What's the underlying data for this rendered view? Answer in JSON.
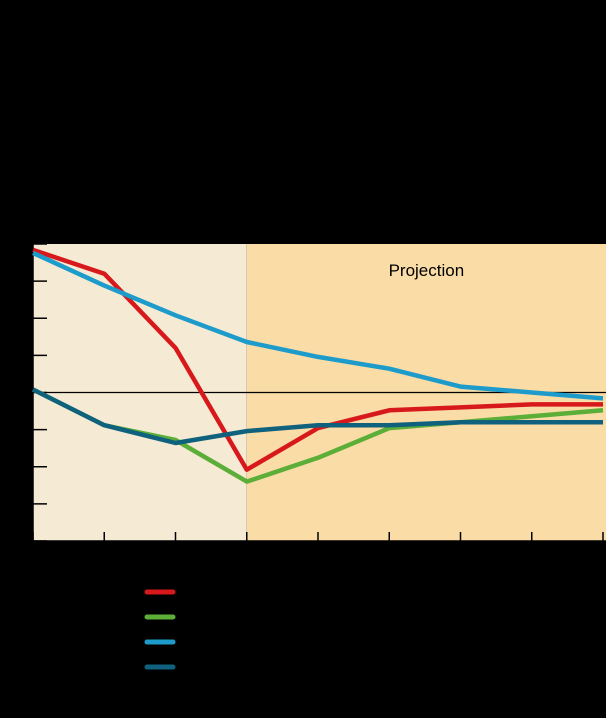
{
  "chart_data": {
    "type": "line",
    "title": "",
    "xlabel": "",
    "ylabel": "",
    "x": [
      0,
      1,
      2,
      3,
      4,
      5,
      6,
      7,
      8
    ],
    "ylim": [
      -5,
      5
    ],
    "grid": false,
    "zero_line": true,
    "regions": [
      {
        "label": "",
        "from": 0,
        "to": 3,
        "color": "#F5EAD3"
      },
      {
        "label": "Projection",
        "from": 3,
        "to": 8,
        "color": "#FADCA6"
      }
    ],
    "series": [
      {
        "name": "",
        "color": "#D7191C",
        "values": [
          4.8,
          4.0,
          1.5,
          -2.6,
          -1.2,
          -0.6,
          -0.5,
          -0.4,
          -0.4
        ]
      },
      {
        "name": "",
        "color": "#5BAE38",
        "values": [
          0.1,
          -1.1,
          -1.6,
          -3.0,
          -2.2,
          -1.2,
          -1.0,
          -0.8,
          -0.6
        ]
      },
      {
        "name": "",
        "color": "#1D9BCB",
        "values": [
          4.7,
          3.6,
          2.6,
          1.7,
          1.2,
          0.8,
          0.2,
          0.0,
          -0.2
        ]
      },
      {
        "name": "",
        "color": "#0F617D",
        "values": [
          0.1,
          -1.1,
          -1.7,
          -1.3,
          -1.1,
          -1.1,
          -1.0,
          -1.0,
          -1.0
        ]
      }
    ]
  }
}
